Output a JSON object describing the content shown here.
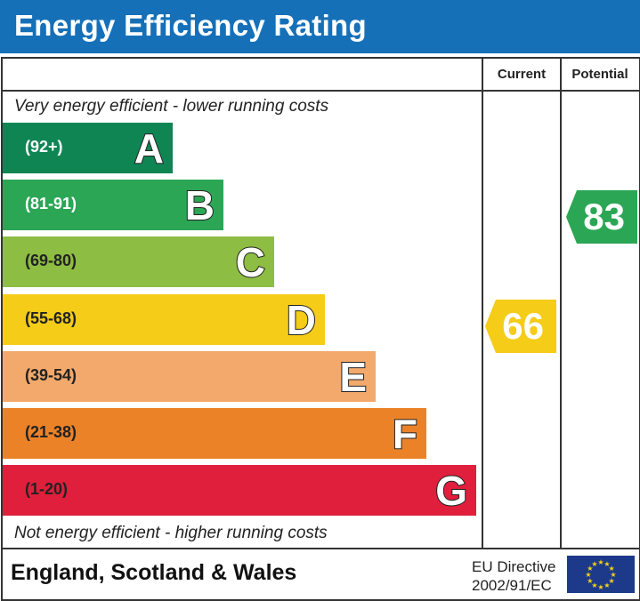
{
  "title": "Energy Efficiency Rating",
  "chart_data": {
    "type": "bar",
    "title": "Energy Efficiency Rating",
    "columns": [
      "Current",
      "Potential"
    ],
    "top_note": "Very energy efficient - lower running costs",
    "bottom_note": "Not energy efficient - higher running costs",
    "bands": [
      {
        "letter": "A",
        "range": "(92+)",
        "color": "#0f8554",
        "text_color": "#ffffff"
      },
      {
        "letter": "B",
        "range": "(81-91)",
        "color": "#2ba655",
        "text_color": "#ffffff"
      },
      {
        "letter": "C",
        "range": "(69-80)",
        "color": "#8dbd42",
        "text_color": "#222222"
      },
      {
        "letter": "D",
        "range": "(55-68)",
        "color": "#f5cc18",
        "text_color": "#222222"
      },
      {
        "letter": "E",
        "range": "(39-54)",
        "color": "#f2a96b",
        "text_color": "#222222"
      },
      {
        "letter": "F",
        "range": "(21-38)",
        "color": "#ec8228",
        "text_color": "#222222"
      },
      {
        "letter": "G",
        "range": "(1-20)",
        "color": "#df1f3b",
        "text_color": "#222222"
      }
    ],
    "current": {
      "value": 66,
      "band": "D",
      "color": "#f5cc18"
    },
    "potential": {
      "value": 83,
      "band": "B",
      "color": "#2ba655"
    }
  },
  "footer": {
    "region": "England, Scotland & Wales",
    "directive_line1": "EU Directive",
    "directive_line2": "2002/91/EC"
  },
  "colors": {
    "header": "#1570b8",
    "eu_flag": "#1d3a8a",
    "eu_stars": "#f7d117"
  }
}
